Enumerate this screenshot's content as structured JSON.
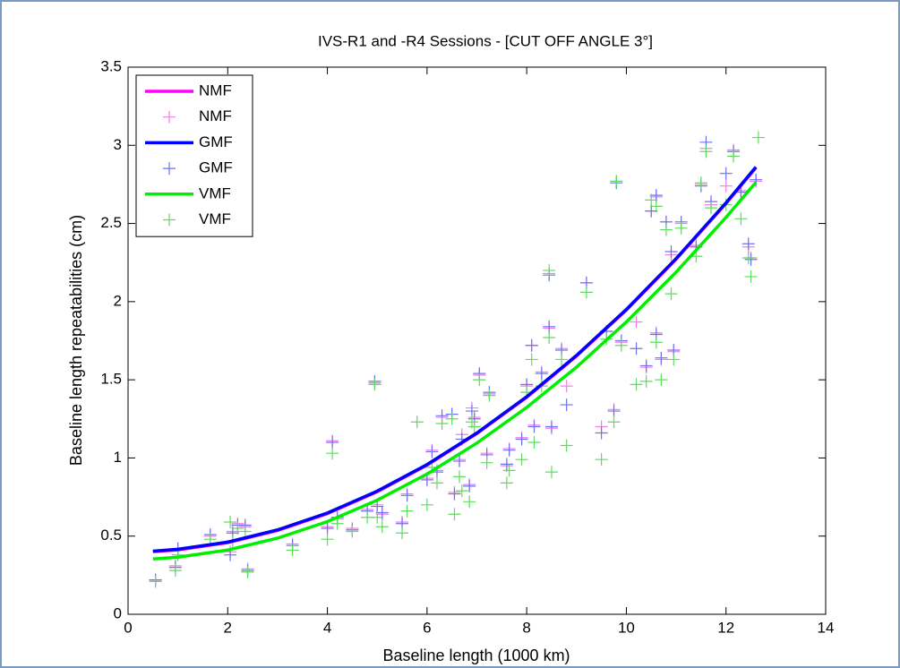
{
  "chart_data": {
    "type": "line",
    "title": "IVS-R1 and -R4 Sessions   -  [CUT OFF ANGLE 3°]",
    "x_label": "Baseline length (1000 km)",
    "y_label": "Baseline length repeatabilities (cm)",
    "xlim": [
      0,
      14
    ],
    "xticks": [
      0,
      2,
      4,
      6,
      8,
      10,
      12,
      14
    ],
    "ylim": [
      0,
      3.5
    ],
    "yticks": [
      0,
      0.5,
      1,
      1.5,
      2,
      2.5,
      3,
      3.5
    ],
    "legend_location": "upper left",
    "series": [
      {
        "name": "NMF",
        "type": "line",
        "color": "#ff00ff",
        "x": [
          0.5,
          1,
          2,
          3,
          4,
          5,
          6,
          7,
          8,
          9,
          10,
          11,
          12,
          12.6
        ],
        "values": [
          0.4,
          0.412,
          0.458,
          0.536,
          0.644,
          0.784,
          0.954,
          1.156,
          1.388,
          1.652,
          1.946,
          2.272,
          2.628,
          2.857
        ]
      },
      {
        "name": "NMF",
        "type": "scatter",
        "color": "#f27ee6",
        "x": [
          0.55,
          0.95,
          1.0,
          1.65,
          2.05,
          2.1,
          2.2,
          2.35,
          2.4,
          3.3,
          4.0,
          4.1,
          4.2,
          4.5,
          4.8,
          4.95,
          5.0,
          5.1,
          5.5,
          5.6,
          6.0,
          6.1,
          6.2,
          6.3,
          6.5,
          6.55,
          6.65,
          6.7,
          6.85,
          6.9,
          6.95,
          7.05,
          7.2,
          7.25,
          7.6,
          7.65,
          7.9,
          8.0,
          8.1,
          8.15,
          8.3,
          8.45,
          8.45,
          8.5,
          8.7,
          8.8,
          9.2,
          9.5,
          9.6,
          9.75,
          9.8,
          9.9,
          10.2,
          10.4,
          10.5,
          10.6,
          10.6,
          10.7,
          10.8,
          10.9,
          10.95,
          11.1,
          11.4,
          11.5,
          11.6,
          11.7,
          12.0,
          12.15,
          12.3,
          12.45,
          12.5,
          12.6
        ],
        "values": [
          0.22,
          0.31,
          0.42,
          0.5,
          0.4,
          0.53,
          0.58,
          0.56,
          0.29,
          0.45,
          0.56,
          1.11,
          0.61,
          0.55,
          0.67,
          1.48,
          0.7,
          0.64,
          0.59,
          0.77,
          0.87,
          1.05,
          0.92,
          1.26,
          1.28,
          0.78,
          0.99,
          1.15,
          0.83,
          1.32,
          1.26,
          1.53,
          1.03,
          1.41,
          0.95,
          1.06,
          1.13,
          1.46,
          1.72,
          1.21,
          1.55,
          1.83,
          2.18,
          1.19,
          1.7,
          1.46,
          2.12,
          1.2,
          1.81,
          1.31,
          2.77,
          1.74,
          1.87,
          1.58,
          2.58,
          2.67,
          1.8,
          1.63,
          2.51,
          2.3,
          1.68,
          2.5,
          2.36,
          2.75,
          2.98,
          2.62,
          2.74,
          2.97,
          2.71,
          2.35,
          2.28,
          2.77
        ]
      },
      {
        "name": "GMF",
        "type": "line",
        "color": "#0000ff",
        "x": [
          0.5,
          1,
          2,
          3,
          4,
          5,
          6,
          7,
          8,
          9,
          10,
          11,
          12,
          12.6
        ],
        "values": [
          0.404,
          0.416,
          0.462,
          0.54,
          0.648,
          0.788,
          0.958,
          1.16,
          1.392,
          1.656,
          1.95,
          2.276,
          2.632,
          2.861
        ]
      },
      {
        "name": "GMF",
        "type": "scatter",
        "color": "#6f6ff5",
        "x": [
          0.55,
          0.95,
          1.0,
          1.65,
          2.05,
          2.1,
          2.2,
          2.35,
          2.4,
          3.3,
          4.0,
          4.1,
          4.2,
          4.5,
          4.8,
          4.95,
          5.0,
          5.1,
          5.5,
          5.6,
          6.0,
          6.1,
          6.2,
          6.3,
          6.5,
          6.55,
          6.65,
          6.7,
          6.85,
          6.9,
          6.95,
          7.05,
          7.2,
          7.25,
          7.6,
          7.65,
          7.9,
          8.0,
          8.1,
          8.15,
          8.3,
          8.45,
          8.45,
          8.5,
          8.7,
          8.8,
          9.2,
          9.5,
          9.6,
          9.75,
          9.8,
          9.9,
          10.2,
          10.4,
          10.5,
          10.6,
          10.6,
          10.7,
          10.8,
          10.9,
          10.95,
          11.1,
          11.4,
          11.5,
          11.6,
          11.7,
          12.0,
          12.15,
          12.3,
          12.45,
          12.5,
          12.6
        ],
        "values": [
          0.22,
          0.3,
          0.42,
          0.51,
          0.38,
          0.52,
          0.57,
          0.57,
          0.28,
          0.44,
          0.55,
          1.1,
          0.62,
          0.54,
          0.66,
          1.49,
          0.69,
          0.65,
          0.58,
          0.76,
          0.86,
          1.04,
          0.91,
          1.27,
          1.28,
          0.77,
          0.98,
          1.12,
          0.82,
          1.3,
          1.25,
          1.54,
          1.02,
          1.42,
          0.96,
          1.05,
          1.12,
          1.47,
          1.72,
          1.2,
          1.54,
          1.84,
          2.17,
          1.2,
          1.69,
          1.34,
          2.12,
          1.16,
          1.81,
          1.3,
          2.76,
          1.75,
          1.7,
          1.59,
          2.58,
          2.68,
          1.79,
          1.64,
          2.51,
          2.32,
          1.69,
          2.51,
          2.35,
          2.74,
          3.02,
          2.64,
          2.82,
          2.96,
          2.7,
          2.37,
          2.27,
          2.78
        ]
      },
      {
        "name": "VMF",
        "type": "line",
        "color": "#00ee00",
        "x": [
          0.5,
          1,
          2,
          3,
          4,
          5,
          6,
          7,
          8,
          9,
          10,
          11,
          12,
          12.6
        ],
        "values": [
          0.354,
          0.365,
          0.411,
          0.487,
          0.593,
          0.73,
          0.897,
          1.095,
          1.323,
          1.581,
          1.87,
          2.189,
          2.539,
          2.763
        ]
      },
      {
        "name": "VMF",
        "type": "scatter",
        "color": "#5fdc5f",
        "x": [
          0.55,
          0.95,
          1.0,
          1.65,
          2.05,
          2.1,
          2.2,
          2.35,
          2.4,
          3.3,
          4.0,
          4.1,
          4.2,
          4.5,
          4.8,
          4.95,
          5.0,
          5.1,
          5.5,
          5.6,
          5.8,
          6.0,
          6.1,
          6.2,
          6.3,
          6.5,
          6.55,
          6.65,
          6.7,
          6.85,
          6.9,
          6.95,
          7.05,
          7.2,
          7.25,
          7.6,
          7.65,
          7.9,
          8.0,
          8.1,
          8.15,
          8.3,
          8.45,
          8.45,
          8.5,
          8.7,
          8.8,
          9.2,
          9.5,
          9.6,
          9.75,
          9.8,
          9.9,
          10.2,
          10.4,
          10.5,
          10.6,
          10.6,
          10.7,
          10.8,
          10.9,
          10.95,
          11.1,
          11.4,
          11.5,
          11.6,
          11.7,
          12.0,
          12.15,
          12.3,
          12.45,
          12.5,
          12.65
        ],
        "values": [
          0.21,
          0.28,
          0.38,
          0.48,
          0.59,
          0.47,
          0.55,
          0.53,
          0.27,
          0.41,
          0.48,
          1.03,
          0.58,
          0.53,
          0.62,
          1.47,
          0.62,
          0.56,
          0.52,
          0.66,
          1.23,
          0.7,
          0.94,
          0.84,
          1.22,
          1.25,
          0.64,
          0.88,
          0.79,
          0.72,
          1.23,
          1.2,
          1.5,
          0.97,
          1.4,
          0.84,
          0.92,
          0.99,
          1.42,
          1.63,
          1.1,
          1.46,
          1.77,
          2.2,
          0.91,
          1.63,
          1.08,
          2.06,
          0.99,
          1.76,
          1.23,
          2.77,
          1.72,
          1.47,
          1.49,
          2.65,
          2.61,
          1.74,
          1.5,
          2.46,
          2.05,
          1.63,
          2.47,
          2.29,
          2.76,
          2.96,
          2.6,
          2.62,
          2.93,
          2.53,
          2.28,
          2.16,
          3.05
        ]
      }
    ]
  }
}
